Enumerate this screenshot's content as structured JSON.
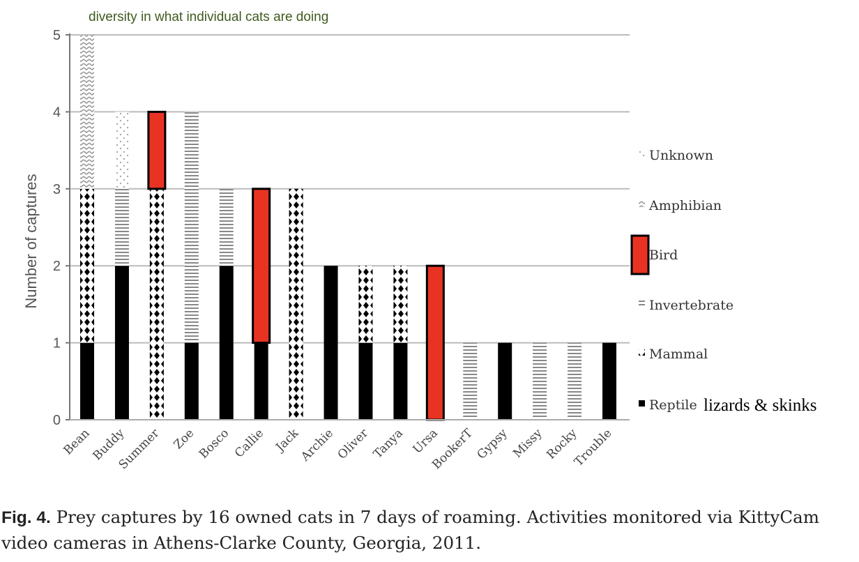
{
  "annotation": "diversity in what individual cats are doing",
  "caption": {
    "label": "Fig. 4.",
    "text": "Prey captures by 16 owned cats in 7 days of roaming. Activities monitored via KittyCam video cameras in Athens-Clarke County, Georgia, 2011."
  },
  "legend_note": "lizards & skinks",
  "chart_data": {
    "type": "bar",
    "stacked": true,
    "ylabel": "Number of captures",
    "xlabel": "",
    "ylim": [
      0,
      5
    ],
    "yticks": [
      "0",
      "1",
      "2",
      "3",
      "4",
      "5"
    ],
    "grid": true,
    "legend_position": "right",
    "categories": [
      "Bean",
      "Buddy",
      "Summer",
      "Zoe",
      "Bosco",
      "Callie",
      "Jack",
      "Archie",
      "Oliver",
      "Tanya",
      "Ursa",
      "BookerT",
      "Gypsy",
      "Missy",
      "Rocky",
      "Trouble"
    ],
    "series": [
      {
        "name": "Reptile",
        "pattern": "solid-black",
        "values": [
          1,
          2,
          0,
          1,
          2,
          1,
          0,
          2,
          1,
          1,
          0,
          0,
          1,
          0,
          0,
          1
        ]
      },
      {
        "name": "Mammal",
        "pattern": "black-diamonds",
        "values": [
          2,
          0,
          3,
          0,
          0,
          0,
          3,
          0,
          1,
          1,
          0,
          0,
          0,
          0,
          0,
          0
        ]
      },
      {
        "name": "Invertebrate",
        "pattern": "horizontal-lines",
        "values": [
          0,
          1,
          0,
          3,
          1,
          0,
          0,
          0,
          0,
          0,
          0,
          1,
          0,
          1,
          1,
          0
        ]
      },
      {
        "name": "Bird",
        "pattern": "red-outlined",
        "color": "#e83323",
        "values": [
          0,
          0,
          1,
          0,
          0,
          2,
          0,
          0,
          0,
          0,
          2,
          0,
          0,
          0,
          0,
          0
        ]
      },
      {
        "name": "Amphibian",
        "pattern": "zigzag",
        "values": [
          2,
          0,
          0,
          0,
          0,
          0,
          0,
          0,
          0,
          0,
          0,
          0,
          0,
          0,
          0,
          0
        ]
      },
      {
        "name": "Unknown",
        "pattern": "sparse-dots",
        "values": [
          0,
          1,
          0,
          0,
          0,
          0,
          0,
          0,
          0,
          0,
          0,
          0,
          0,
          0,
          0,
          0
        ]
      }
    ],
    "legend_order": [
      "Unknown",
      "Amphibian",
      "Bird",
      "Invertebrate",
      "Mammal",
      "Reptile"
    ]
  }
}
